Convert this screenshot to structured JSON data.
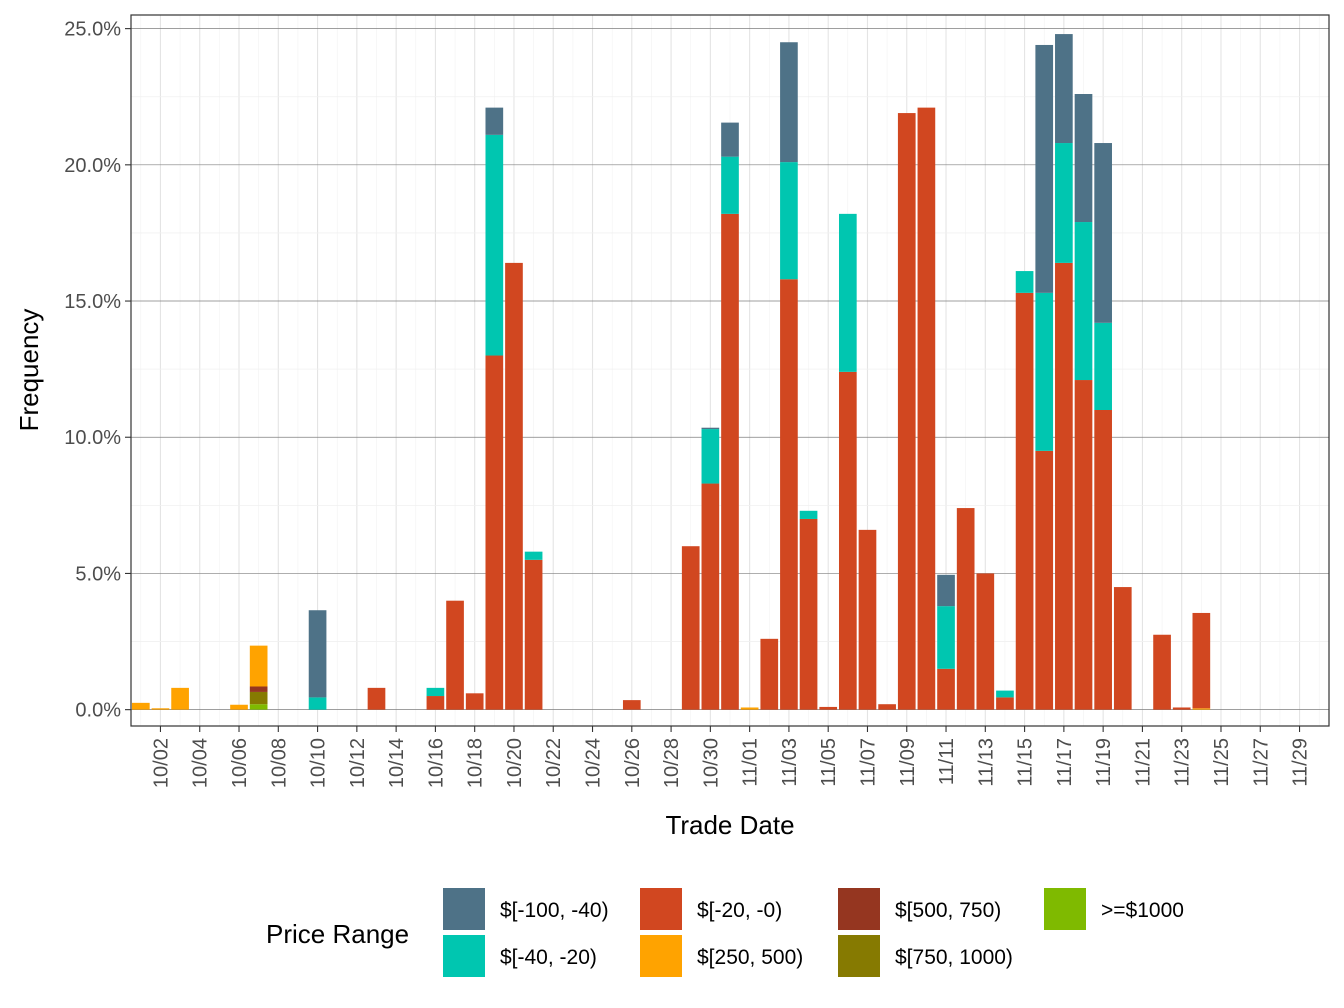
{
  "chart_data": {
    "type": "bar",
    "stacked": true,
    "xlabel": "Trade Date",
    "ylabel": "Frequency",
    "ylim": [
      -0.6,
      25.5
    ],
    "y_ticks": [
      0,
      5,
      10,
      15,
      20,
      25
    ],
    "y_tick_labels": [
      "0.0%",
      "5.0%",
      "10.0%",
      "15.0%",
      "20.0%",
      "25.0%"
    ],
    "categories": [
      "10/01",
      "10/02",
      "10/03",
      "10/04",
      "10/05",
      "10/06",
      "10/07",
      "10/08",
      "10/09",
      "10/10",
      "10/11",
      "10/12",
      "10/13",
      "10/14",
      "10/15",
      "10/16",
      "10/17",
      "10/18",
      "10/19",
      "10/20",
      "10/21",
      "10/22",
      "10/23",
      "10/24",
      "10/25",
      "10/26",
      "10/27",
      "10/28",
      "10/29",
      "10/30",
      "10/31",
      "11/01",
      "11/02",
      "11/03",
      "11/04",
      "11/05",
      "11/06",
      "11/07",
      "11/08",
      "11/09",
      "11/10",
      "11/11",
      "11/12",
      "11/13",
      "11/14",
      "11/15",
      "11/16",
      "11/17",
      "11/18",
      "11/19",
      "11/20",
      "11/21",
      "11/22",
      "11/23",
      "11/24",
      "11/25",
      "11/26",
      "11/27",
      "11/28",
      "11/29",
      "11/30"
    ],
    "x_tick_labels": [
      "10/02",
      "10/04",
      "10/06",
      "10/08",
      "10/10",
      "10/12",
      "10/14",
      "10/16",
      "10/18",
      "10/20",
      "10/22",
      "10/24",
      "10/26",
      "10/28",
      "10/30",
      "11/01",
      "11/03",
      "11/05",
      "11/07",
      "11/09",
      "11/11",
      "11/13",
      "11/15",
      "11/17",
      "11/19",
      "11/21",
      "11/23",
      "11/25",
      "11/27",
      "11/29"
    ],
    "grid": true,
    "legend_position": "bottom",
    "legend_title": "Price Range",
    "series": [
      {
        "name": ">=$1000",
        "color": "#7fba00",
        "values": [
          0,
          0,
          0,
          0,
          0,
          0,
          0.2,
          0,
          0,
          0,
          0,
          0,
          0,
          0,
          0,
          0,
          0,
          0,
          0,
          0,
          0,
          0,
          0,
          0,
          0,
          0,
          0,
          0,
          0,
          0,
          0,
          0,
          0,
          0,
          0,
          0,
          0,
          0,
          0,
          0,
          0,
          0,
          0,
          0,
          0,
          0,
          0,
          0,
          0,
          0,
          0,
          0,
          0,
          0,
          0,
          0,
          0,
          0,
          0,
          0,
          0
        ]
      },
      {
        "name": "$[750, 1000)",
        "color": "#867a01",
        "values": [
          0,
          0,
          0,
          0,
          0,
          0,
          0.45,
          0,
          0,
          0,
          0,
          0,
          0,
          0,
          0,
          0,
          0,
          0,
          0,
          0,
          0,
          0,
          0,
          0,
          0,
          0,
          0,
          0,
          0,
          0,
          0,
          0,
          0,
          0,
          0,
          0,
          0,
          0,
          0,
          0,
          0,
          0,
          0,
          0,
          0,
          0,
          0,
          0,
          0,
          0,
          0,
          0,
          0,
          0,
          0,
          0,
          0,
          0,
          0,
          0,
          0
        ]
      },
      {
        "name": "$[500, 750)",
        "color": "#953620",
        "values": [
          0,
          0,
          0,
          0,
          0,
          0,
          0.2,
          0,
          0,
          0,
          0,
          0,
          0,
          0,
          0,
          0,
          0,
          0,
          0,
          0,
          0,
          0,
          0,
          0,
          0,
          0,
          0,
          0,
          0,
          0,
          0,
          0,
          0,
          0,
          0,
          0,
          0,
          0,
          0,
          0,
          0,
          0,
          0,
          0,
          0,
          0,
          0,
          0,
          0,
          0,
          0,
          0,
          0,
          0,
          0,
          0,
          0,
          0,
          0,
          0,
          0
        ]
      },
      {
        "name": "$[250, 500)",
        "color": "#ffa300",
        "values": [
          0.25,
          0.05,
          0.8,
          0,
          0,
          0.18,
          1.5,
          0,
          0,
          0,
          0,
          0,
          0,
          0,
          0,
          0,
          0,
          0,
          0,
          0,
          0,
          0,
          0,
          0,
          0,
          0,
          0,
          0,
          0,
          0,
          0,
          0.08,
          0,
          0,
          0,
          0,
          0,
          0,
          0,
          0,
          0,
          0,
          0,
          0,
          0,
          0,
          0,
          0,
          0,
          0,
          0,
          0,
          0,
          0,
          0.05,
          0,
          0,
          0,
          0,
          0,
          0
        ]
      },
      {
        "name": "$[-20, -0)",
        "color": "#d14720",
        "values": [
          0,
          0,
          0,
          0,
          0,
          0,
          0,
          0,
          0,
          0,
          0,
          0,
          0.8,
          0,
          0,
          0.5,
          4.0,
          0.6,
          13.0,
          16.4,
          5.5,
          0,
          0,
          0,
          0,
          0.35,
          0,
          0,
          6.0,
          8.3,
          18.2,
          0,
          2.6,
          15.8,
          7.0,
          0.1,
          12.4,
          6.6,
          0.2,
          21.9,
          22.1,
          1.5,
          7.4,
          5.0,
          0.45,
          15.3,
          9.5,
          16.4,
          12.1,
          11.0,
          4.5,
          0,
          2.75,
          0.08,
          3.5,
          0,
          0,
          0,
          0,
          0,
          0
        ]
      },
      {
        "name": "$[-40, -20)",
        "color": "#00c6b0",
        "values": [
          0,
          0,
          0,
          0,
          0,
          0,
          0,
          0,
          0,
          0.45,
          0,
          0,
          0,
          0,
          0,
          0.3,
          0,
          0,
          8.1,
          0,
          0.3,
          0,
          0,
          0,
          0,
          0,
          0,
          0,
          0,
          2.0,
          2.1,
          0,
          0,
          4.3,
          0.3,
          0,
          5.8,
          0,
          0,
          0,
          0,
          2.3,
          0,
          0,
          0.25,
          0.8,
          5.8,
          4.4,
          5.8,
          3.2,
          0,
          0,
          0,
          0,
          0,
          0,
          0,
          0,
          0,
          0,
          0
        ]
      },
      {
        "name": "$[-100, -40)",
        "color": "#4e7287",
        "values": [
          0,
          0,
          0,
          0,
          0,
          0,
          0,
          0,
          0,
          3.2,
          0,
          0,
          0,
          0,
          0,
          0,
          0,
          0,
          1.0,
          0,
          0,
          0,
          0,
          0,
          0,
          0,
          0,
          0,
          0,
          0.05,
          1.25,
          0,
          0,
          4.4,
          0,
          0,
          0,
          0,
          0,
          0,
          0,
          1.15,
          0,
          0,
          0,
          0,
          9.1,
          4.0,
          4.7,
          6.6,
          0,
          0,
          0,
          0,
          0,
          0,
          0,
          0,
          0,
          0,
          0
        ]
      }
    ],
    "legend_entries": [
      {
        "label": "$[-100, -40)",
        "color": "#4e7287"
      },
      {
        "label": "$[-40, -20)",
        "color": "#00c6b0"
      },
      {
        "label": "$[-20, -0)",
        "color": "#d14720"
      },
      {
        "label": "$[250, 500)",
        "color": "#ffa300"
      },
      {
        "label": "$[500, 750)",
        "color": "#953620"
      },
      {
        "label": "$[750, 1000)",
        "color": "#867a01"
      },
      {
        "label": ">=$1000",
        "color": "#7fba00"
      }
    ]
  }
}
